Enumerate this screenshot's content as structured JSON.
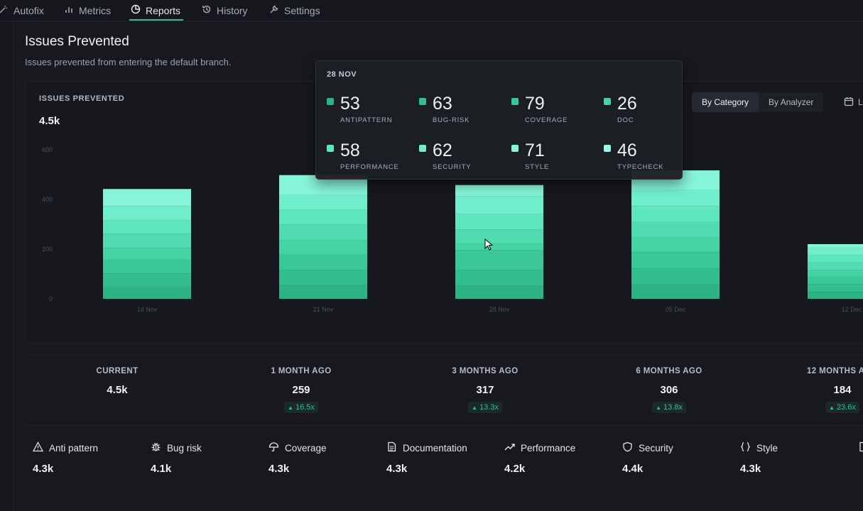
{
  "nav": {
    "items": [
      {
        "label": "Autofix",
        "icon": "wand-icon"
      },
      {
        "label": "Metrics",
        "icon": "bar-chart-icon"
      },
      {
        "label": "Reports",
        "icon": "pie-chart-icon",
        "active": true
      },
      {
        "label": "History",
        "icon": "history-icon"
      },
      {
        "label": "Settings",
        "icon": "wrench-icon"
      }
    ]
  },
  "page": {
    "title": "Issues Prevented",
    "subtitle": "Issues prevented from entering the default branch."
  },
  "card": {
    "label": "ISSUES PREVENTED",
    "value": "4.5k",
    "toggle": {
      "by_category": "By Category",
      "by_analyzer": "By Analyzer"
    },
    "calendar_label": "L"
  },
  "chart_data": {
    "type": "bar",
    "stacked": true,
    "categories": [
      "14 Nov",
      "21 Nov",
      "28 Nov",
      "05 Dec",
      "12 Dec"
    ],
    "yticks": [
      0,
      200,
      400,
      600
    ],
    "ylim": [
      0,
      600
    ],
    "series": [
      {
        "name": "ANTIPATTERN",
        "color": "#2db383",
        "values": [
          50,
          56,
          53,
          60,
          28
        ]
      },
      {
        "name": "BUG-RISK",
        "color": "#33be8d",
        "values": [
          52,
          60,
          63,
          62,
          30
        ]
      },
      {
        "name": "COVERAGE",
        "color": "#3ac898",
        "values": [
          55,
          64,
          79,
          66,
          32
        ]
      },
      {
        "name": "DOC",
        "color": "#44d3a3",
        "values": [
          48,
          56,
          26,
          58,
          26
        ]
      },
      {
        "name": "PERFORMANCE",
        "color": "#50dcb0",
        "values": [
          56,
          62,
          58,
          64,
          30
        ]
      },
      {
        "name": "SECURITY",
        "color": "#5ee6bd",
        "values": [
          55,
          60,
          62,
          64,
          30
        ]
      },
      {
        "name": "STYLE",
        "color": "#70eecb",
        "values": [
          56,
          62,
          71,
          66,
          30
        ]
      },
      {
        "name": "TYPECHECK",
        "color": "#86f4d9",
        "values": [
          70,
          78,
          46,
          77,
          14
        ]
      }
    ]
  },
  "tooltip": {
    "date": "28 NOV",
    "items": [
      {
        "value": "53",
        "name": "ANTIPATTERN",
        "color": "#2db383"
      },
      {
        "value": "63",
        "name": "BUG-RISK",
        "color": "#33be8d"
      },
      {
        "value": "79",
        "name": "COVERAGE",
        "color": "#3ac898"
      },
      {
        "value": "26",
        "name": "DOC",
        "color": "#44d3a3"
      },
      {
        "value": "58",
        "name": "PERFORMANCE",
        "color": "#5ee6bd"
      },
      {
        "value": "62",
        "name": "SECURITY",
        "color": "#70eecb"
      },
      {
        "value": "71",
        "name": "STYLE",
        "color": "#86f4d9"
      },
      {
        "value": "46",
        "name": "TYPECHECK",
        "color": "#9af7e6"
      }
    ]
  },
  "stats": [
    {
      "label": "CURRENT",
      "value": "4.5k",
      "badge": ""
    },
    {
      "label": "1 MONTH AGO",
      "value": "259",
      "badge": "16.5x"
    },
    {
      "label": "3 MONTHS AGO",
      "value": "317",
      "badge": "13.3x"
    },
    {
      "label": "6 MONTHS AGO",
      "value": "306",
      "badge": "13.8x"
    },
    {
      "label": "12 MONTHS AGO",
      "value": "184",
      "badge": "23.6x"
    }
  ],
  "categories": [
    {
      "label": "Anti pattern",
      "value": "4.3k",
      "icon": "warning-icon"
    },
    {
      "label": "Bug risk",
      "value": "4.1k",
      "icon": "bug-icon"
    },
    {
      "label": "Coverage",
      "value": "4.3k",
      "icon": "umbrella-icon"
    },
    {
      "label": "Documentation",
      "value": "4.3k",
      "icon": "document-icon"
    },
    {
      "label": "Performance",
      "value": "4.2k",
      "icon": "trend-up-icon"
    },
    {
      "label": "Security",
      "value": "4.4k",
      "icon": "shield-icon"
    },
    {
      "label": "Style",
      "value": "4.3k",
      "icon": "braces-icon"
    },
    {
      "label": "",
      "value": "",
      "icon": "file-icon"
    }
  ]
}
